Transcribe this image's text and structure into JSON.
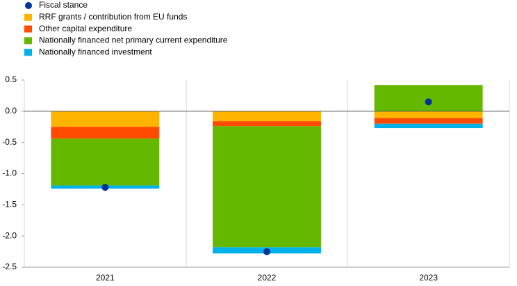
{
  "chart_data": {
    "type": "bar",
    "stacked": true,
    "categories": [
      "2021",
      "2022",
      "2023"
    ],
    "series": [
      {
        "name": "Fiscal stance",
        "type": "scatter",
        "color": "#003299",
        "values": [
          -1.22,
          -2.25,
          0.15
        ]
      },
      {
        "name": "RRF grants / contribution from EU funds",
        "type": "bar",
        "color": "#ffb400",
        "values": [
          -0.25,
          -0.16,
          -0.11
        ]
      },
      {
        "name": "Other capital expenditure",
        "type": "bar",
        "color": "#ff4b00",
        "values": [
          -0.19,
          -0.08,
          -0.09
        ]
      },
      {
        "name": "Nationally financed net primary current expenditure",
        "type": "bar",
        "color": "#65b800",
        "values": [
          -0.75,
          -1.94,
          0.42
        ]
      },
      {
        "name": "Nationally financed investment",
        "type": "bar",
        "color": "#00b1ea",
        "values": [
          -0.05,
          -0.1,
          -0.07
        ]
      }
    ],
    "ylim": [
      -2.5,
      0.5
    ],
    "yticks": [
      0.5,
      {
        "value": 0,
        "label": "0.0"
      },
      -0.5,
      {
        "value": -1,
        "label": "-1.0"
      },
      -1.5,
      {
        "value": -2,
        "label": "-2.0"
      },
      -2.5
    ],
    "legend": "top-left"
  }
}
